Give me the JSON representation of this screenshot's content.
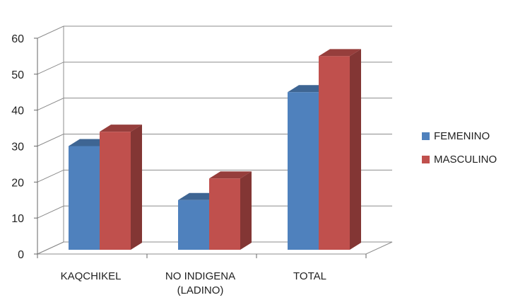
{
  "chart_data": {
    "type": "bar",
    "categories": [
      "KAQCHIKEL",
      "NO INDIGENA (LADINO)",
      "TOTAL"
    ],
    "category_lines": [
      [
        "KAQCHIKEL"
      ],
      [
        "NO INDIGENA",
        "(LADINO)"
      ],
      [
        "TOTAL"
      ]
    ],
    "series": [
      {
        "name": "FEMENINO",
        "values": [
          30,
          15,
          45
        ],
        "color": "#4F81BD"
      },
      {
        "name": "MASCULINO",
        "values": [
          34,
          21,
          55
        ],
        "color": "#C0504D"
      }
    ],
    "ylim": [
      0,
      60
    ],
    "yticks": [
      0,
      10,
      20,
      30,
      40,
      50,
      60
    ],
    "grid": true,
    "legend_position": "right",
    "style": "3d-column"
  },
  "legend": {
    "items": [
      {
        "label": "FEMENINO",
        "color": "#4F81BD"
      },
      {
        "label": "MASCULINO",
        "color": "#C0504D"
      }
    ]
  }
}
